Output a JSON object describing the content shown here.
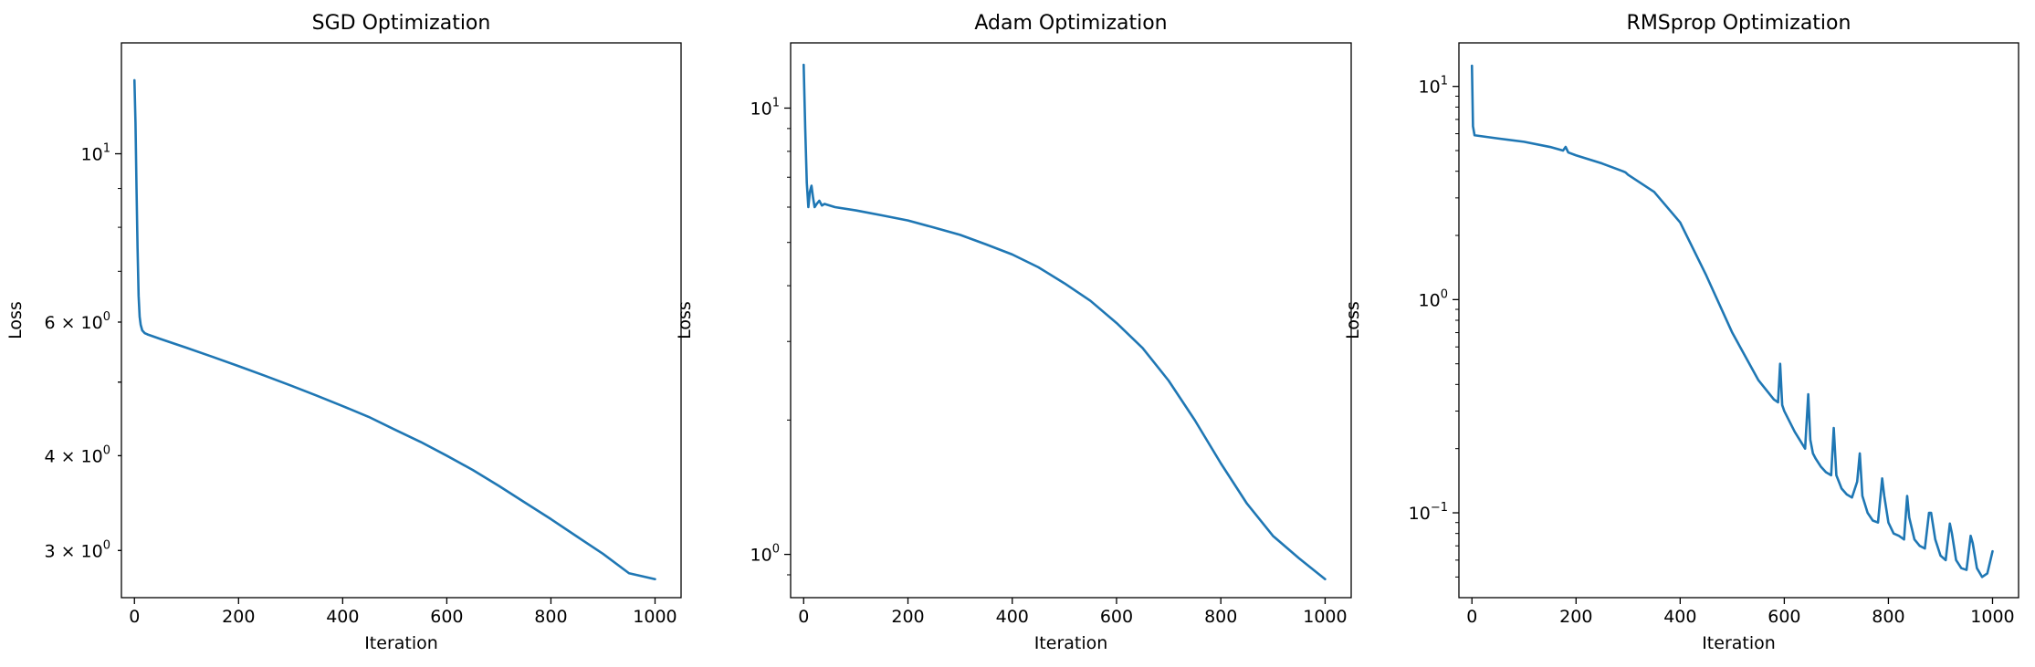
{
  "figure": {
    "background": "#ffffff"
  },
  "colors": {
    "series": "#1f77b4"
  },
  "chart_data": [
    {
      "type": "line",
      "title": "SGD Optimization",
      "xlabel": "Iteration",
      "ylabel": "Loss",
      "yscale": "log",
      "xlim": [
        -25,
        1050
      ],
      "ylim": [
        2.6,
        14.0
      ],
      "grid": false,
      "x_ticks": [
        0,
        200,
        400,
        600,
        800,
        1000
      ],
      "x_tick_labels": [
        "0",
        "200",
        "400",
        "600",
        "800",
        "1000"
      ],
      "y_major_ticks": [
        {
          "value": 10,
          "mantissa": "10",
          "exp": "1"
        }
      ],
      "y_minor_ticks": [
        {
          "value": 3,
          "mantissa": "3 × 10",
          "exp": "0"
        },
        {
          "value": 4,
          "mantissa": "4 × 10",
          "exp": "0"
        },
        {
          "value": 5,
          "mantissa": "",
          "exp": ""
        },
        {
          "value": 6,
          "mantissa": "6 × 10",
          "exp": "0"
        }
      ],
      "series": [
        {
          "x": [
            0,
            2,
            4,
            6,
            8,
            10,
            12,
            15,
            20,
            25,
            50,
            100,
            150,
            200,
            250,
            300,
            350,
            400,
            450,
            500,
            550,
            600,
            650,
            700,
            750,
            800,
            850,
            900,
            950,
            1000
          ],
          "y": [
            12.5,
            11.0,
            9.0,
            7.5,
            6.5,
            6.1,
            5.95,
            5.85,
            5.8,
            5.78,
            5.7,
            5.55,
            5.4,
            5.25,
            5.1,
            4.95,
            4.8,
            4.65,
            4.5,
            4.33,
            4.17,
            4.0,
            3.83,
            3.65,
            3.47,
            3.3,
            3.13,
            2.97,
            2.8,
            2.75
          ]
        }
      ]
    },
    {
      "type": "line",
      "title": "Adam Optimization",
      "xlabel": "Iteration",
      "ylabel": "Loss",
      "yscale": "log",
      "xlim": [
        -25,
        1050
      ],
      "ylim": [
        0.8,
        14.0
      ],
      "grid": false,
      "x_ticks": [
        0,
        200,
        400,
        600,
        800,
        1000
      ],
      "x_tick_labels": [
        "0",
        "200",
        "400",
        "600",
        "800",
        "1000"
      ],
      "y_major_ticks": [
        {
          "value": 1,
          "mantissa": "10",
          "exp": "0"
        },
        {
          "value": 10,
          "mantissa": "10",
          "exp": "1"
        }
      ],
      "y_minor_ticks": [],
      "series": [
        {
          "x": [
            0,
            3,
            6,
            9,
            12,
            15,
            18,
            21,
            25,
            30,
            35,
            40,
            50,
            60,
            100,
            150,
            200,
            250,
            300,
            350,
            400,
            450,
            500,
            550,
            600,
            650,
            700,
            750,
            800,
            850,
            900,
            950,
            1000
          ],
          "y": [
            12.5,
            9.0,
            6.8,
            6.0,
            6.5,
            6.7,
            6.3,
            6.0,
            6.1,
            6.2,
            6.05,
            6.1,
            6.05,
            6.0,
            5.9,
            5.75,
            5.6,
            5.4,
            5.2,
            4.95,
            4.7,
            4.4,
            4.05,
            3.7,
            3.3,
            2.9,
            2.45,
            2.0,
            1.6,
            1.3,
            1.1,
            0.98,
            0.88
          ]
        }
      ]
    },
    {
      "type": "line",
      "title": "RMSprop Optimization",
      "xlabel": "Iteration",
      "ylabel": "Loss",
      "yscale": "log",
      "xlim": [
        -25,
        1050
      ],
      "ylim": [
        0.04,
        16.0
      ],
      "grid": false,
      "x_ticks": [
        0,
        200,
        400,
        600,
        800,
        1000
      ],
      "x_tick_labels": [
        "0",
        "200",
        "400",
        "600",
        "800",
        "1000"
      ],
      "y_major_ticks": [
        {
          "value": 0.1,
          "mantissa": "10",
          "exp": "−1"
        },
        {
          "value": 1,
          "mantissa": "10",
          "exp": "0"
        },
        {
          "value": 10,
          "mantissa": "10",
          "exp": "1"
        }
      ],
      "y_minor_ticks": [],
      "series": [
        {
          "x": [
            0,
            2,
            5,
            50,
            100,
            150,
            175,
            180,
            185,
            200,
            250,
            290,
            295,
            300,
            350,
            400,
            450,
            500,
            550,
            580,
            588,
            592,
            596,
            600,
            620,
            640,
            646,
            650,
            655,
            660,
            670,
            680,
            690,
            695,
            700,
            710,
            720,
            730,
            740,
            745,
            750,
            760,
            770,
            780,
            788,
            792,
            800,
            810,
            820,
            830,
            836,
            840,
            850,
            860,
            870,
            878,
            882,
            890,
            900,
            910,
            918,
            922,
            930,
            940,
            950,
            958,
            962,
            970,
            980,
            990,
            1000
          ],
          "y": [
            12.5,
            6.5,
            5.9,
            5.7,
            5.5,
            5.2,
            5.0,
            5.2,
            4.9,
            4.75,
            4.35,
            4.0,
            3.95,
            3.85,
            3.2,
            2.3,
            1.3,
            0.7,
            0.42,
            0.34,
            0.33,
            0.5,
            0.32,
            0.3,
            0.24,
            0.2,
            0.36,
            0.22,
            0.19,
            0.18,
            0.165,
            0.155,
            0.15,
            0.25,
            0.15,
            0.13,
            0.122,
            0.118,
            0.14,
            0.19,
            0.12,
            0.1,
            0.092,
            0.09,
            0.145,
            0.12,
            0.09,
            0.08,
            0.078,
            0.075,
            0.12,
            0.095,
            0.075,
            0.07,
            0.068,
            0.1,
            0.1,
            0.075,
            0.063,
            0.06,
            0.089,
            0.08,
            0.06,
            0.055,
            0.054,
            0.078,
            0.072,
            0.055,
            0.05,
            0.052,
            0.066
          ]
        }
      ]
    }
  ]
}
